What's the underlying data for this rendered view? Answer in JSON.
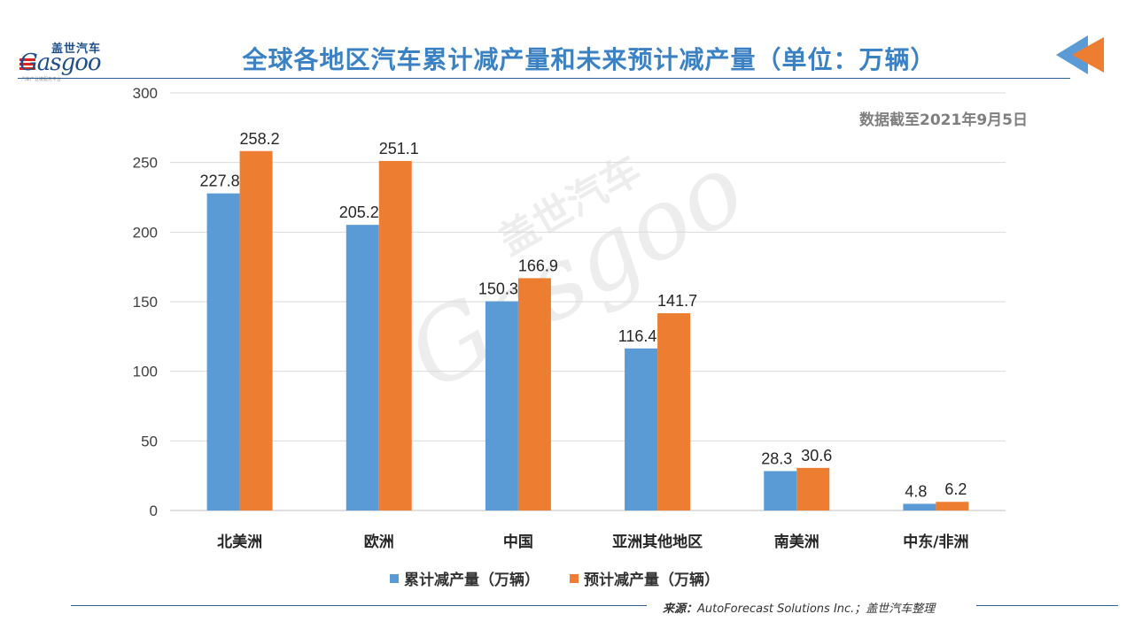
{
  "logo": {
    "brand_cn": "盖世汽车",
    "brand_en": "Gasgoo",
    "tagline": "汽车产业链服务平台"
  },
  "title": "全球各地区汽车累计减产量和未来预计减产量（单位：万辆）",
  "note": "数据截至2021年9月5日",
  "source": {
    "label": "来源：",
    "text": "AutoForecast Solutions Inc.；盖世汽车整理"
  },
  "colors": {
    "series1": "#5b9bd5",
    "series2": "#ed7d31",
    "grid": "#d9d9d9",
    "title": "#3b82c4"
  },
  "chart_data": {
    "type": "bar",
    "categories": [
      "北美洲",
      "欧洲",
      "中国",
      "亚洲其他地区",
      "南美洲",
      "中东/非洲"
    ],
    "series": [
      {
        "name": "累计减产量（万辆）",
        "values": [
          227.8,
          205.2,
          150.3,
          116.4,
          28.3,
          4.8
        ]
      },
      {
        "name": "预计减产量（万辆）",
        "values": [
          258.2,
          251.1,
          166.9,
          141.7,
          30.6,
          6.2
        ]
      }
    ],
    "ylim": [
      0,
      300
    ],
    "yticks": [
      0,
      50,
      100,
      150,
      200,
      250,
      300
    ],
    "grid": true,
    "legend": "bottom"
  }
}
